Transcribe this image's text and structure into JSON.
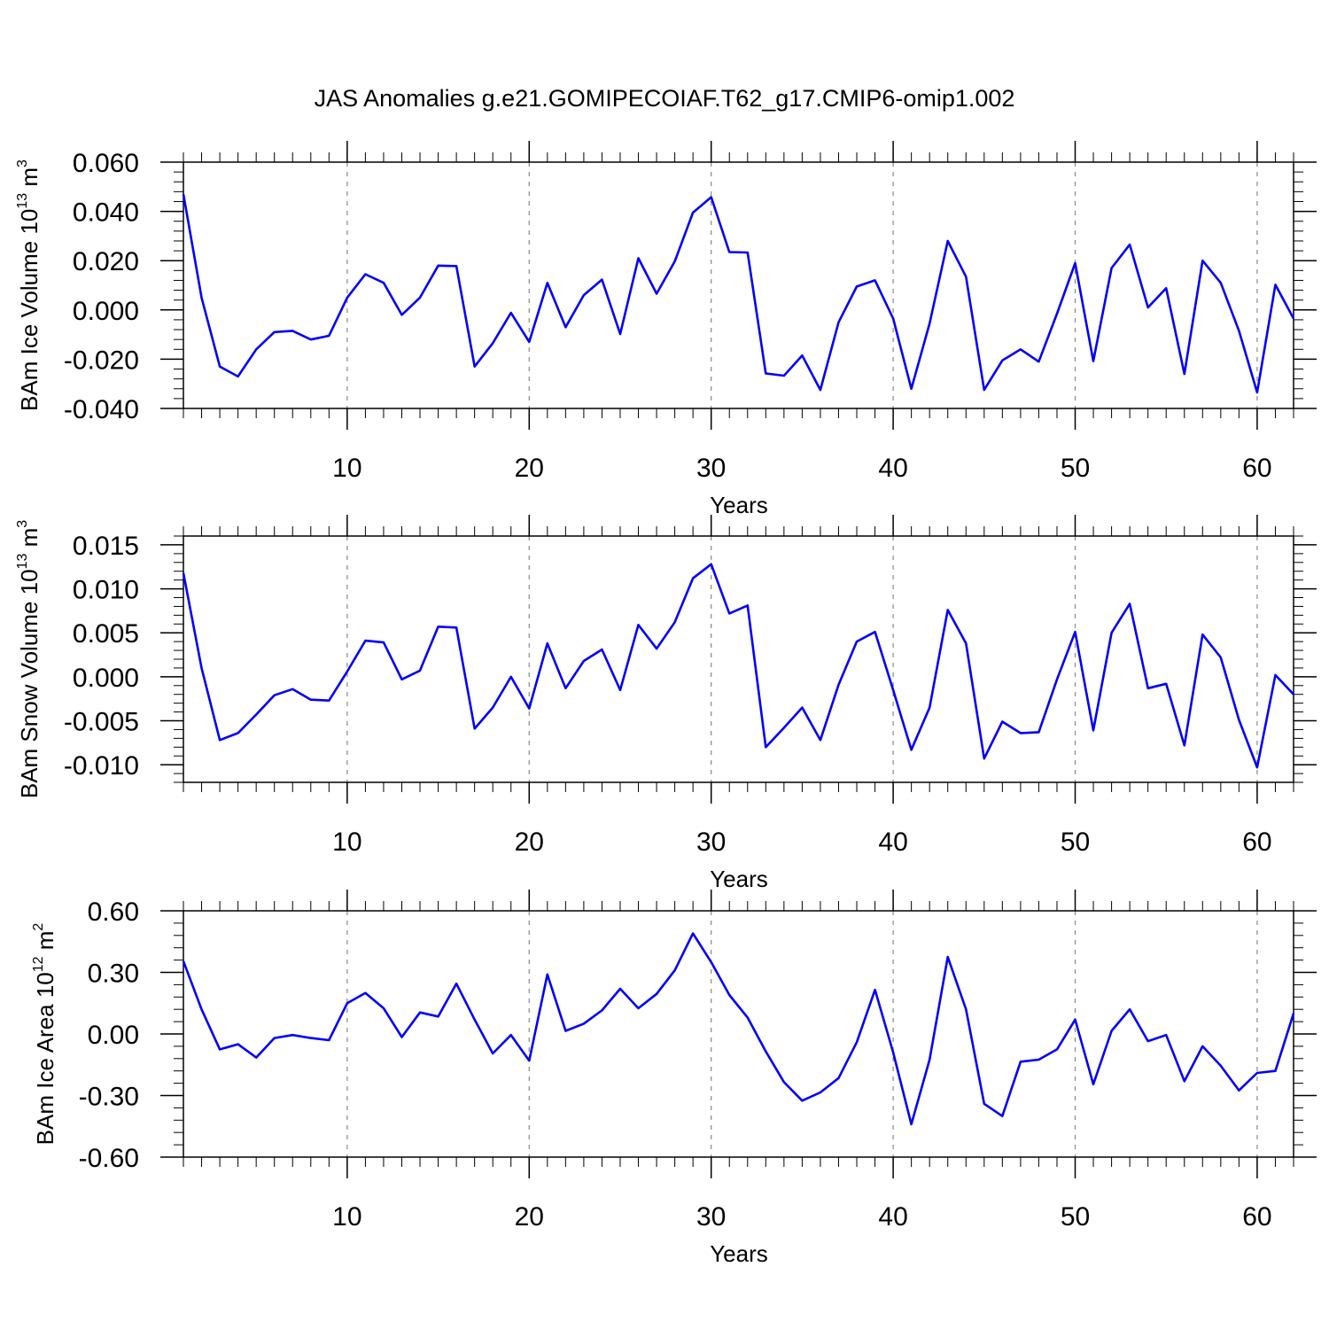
{
  "title": "JAS Anomalies g.e21.GOMIPECOIAF.T62_g17.CMIP6-omip1.002",
  "colors": {
    "series": "#0000ff",
    "axis": "#000000",
    "grid": "#888888"
  },
  "chart_data": [
    {
      "type": "line",
      "xlabel": "Years",
      "ylabel": {
        "prefix": "BAm Ice Volume 10",
        "exp": "13",
        "unit": " m",
        "unit_exp": "3"
      },
      "xlim": [
        1,
        62
      ],
      "ylim": [
        -0.04,
        0.06
      ],
      "xticks": [
        "10",
        "20",
        "30",
        "40",
        "50",
        "60"
      ],
      "yticks": [
        "0.060",
        "0.040",
        "0.020",
        "0.000",
        "-0.020",
        "-0.040"
      ],
      "x": [
        1,
        2,
        3,
        4,
        5,
        6,
        7,
        8,
        9,
        10,
        11,
        12,
        13,
        14,
        15,
        16,
        17,
        18,
        19,
        20,
        21,
        22,
        23,
        24,
        25,
        26,
        27,
        28,
        29,
        30,
        31,
        32,
        33,
        34,
        35,
        36,
        37,
        38,
        39,
        40,
        41,
        42,
        43,
        44,
        45,
        46,
        47,
        48,
        49,
        50,
        51,
        52,
        53,
        54,
        55,
        56,
        57,
        58,
        59,
        60,
        61,
        62
      ],
      "values": [
        0.047,
        0.005,
        -0.023,
        -0.027,
        -0.016,
        -0.009,
        -0.0085,
        -0.012,
        -0.0105,
        0.005,
        0.0145,
        0.011,
        -0.002,
        0.005,
        0.018,
        0.0178,
        -0.023,
        -0.0135,
        -0.0012,
        -0.013,
        0.011,
        -0.007,
        0.006,
        0.0123,
        -0.0098,
        0.021,
        0.0066,
        0.0197,
        0.0395,
        0.0458,
        0.0235,
        0.0233,
        -0.0258,
        -0.0267,
        -0.0185,
        -0.0325,
        -0.005,
        0.0095,
        0.012,
        -0.0035,
        -0.032,
        -0.0055,
        0.028,
        0.0135,
        -0.0325,
        -0.0205,
        -0.016,
        -0.021,
        -0.0015,
        0.019,
        -0.0208,
        0.017,
        0.0265,
        0.001,
        0.0088,
        -0.026,
        0.02,
        0.011,
        -0.0085,
        -0.0335,
        0.0102,
        -0.0035
      ]
    },
    {
      "type": "line",
      "xlabel": "Years",
      "ylabel": {
        "prefix": "BAm Snow Volume 10",
        "exp": "13",
        "unit": " m",
        "unit_exp": "3"
      },
      "xlim": [
        1,
        62
      ],
      "ylim": [
        -0.012,
        0.016
      ],
      "xticks": [
        "10",
        "20",
        "30",
        "40",
        "50",
        "60"
      ],
      "yticks": [
        "0.015",
        "0.010",
        "0.005",
        "0.000",
        "-0.005",
        "-0.010"
      ],
      "x": [
        1,
        2,
        3,
        4,
        5,
        6,
        7,
        8,
        9,
        10,
        11,
        12,
        13,
        14,
        15,
        16,
        17,
        18,
        19,
        20,
        21,
        22,
        23,
        24,
        25,
        26,
        27,
        28,
        29,
        30,
        31,
        32,
        33,
        34,
        35,
        36,
        37,
        38,
        39,
        40,
        41,
        42,
        43,
        44,
        45,
        46,
        47,
        48,
        49,
        50,
        51,
        52,
        53,
        54,
        55,
        56,
        57,
        58,
        59,
        60,
        61,
        62
      ],
      "values": [
        0.0118,
        0.001,
        -0.0072,
        -0.0064,
        -0.0043,
        -0.0021,
        -0.0014,
        -0.0026,
        -0.0027,
        0.0006,
        0.0041,
        0.0039,
        -0.0003,
        0.0007,
        0.0057,
        0.0056,
        -0.0059,
        -0.0035,
        0.0,
        -0.0036,
        0.0038,
        -0.0013,
        0.0018,
        0.0031,
        -0.0015,
        0.0059,
        0.0032,
        0.0062,
        0.0112,
        0.0128,
        0.0072,
        0.0081,
        -0.008,
        -0.0058,
        -0.0035,
        -0.0072,
        -0.0009,
        0.004,
        0.0051,
        -0.0015,
        -0.0083,
        -0.0035,
        0.0076,
        0.0038,
        -0.0093,
        -0.0051,
        -0.0064,
        -0.0063,
        -0.0003,
        0.0051,
        -0.0061,
        0.005,
        0.0083,
        -0.0013,
        -0.0008,
        -0.0078,
        0.0048,
        0.0022,
        -0.0049,
        -0.0103,
        0.0002,
        -0.002
      ]
    },
    {
      "type": "line",
      "xlabel": "Years",
      "ylabel": {
        "prefix": "BAm Ice Area 10",
        "exp": "12",
        "unit": " m",
        "unit_exp": "2"
      },
      "xlim": [
        1,
        62
      ],
      "ylim": [
        -0.6,
        0.6
      ],
      "xticks": [
        "10",
        "20",
        "30",
        "40",
        "50",
        "60"
      ],
      "yticks": [
        "0.60",
        "0.30",
        "0.00",
        "-0.30",
        "-0.60"
      ],
      "x": [
        1,
        2,
        3,
        4,
        5,
        6,
        7,
        8,
        9,
        10,
        11,
        12,
        13,
        14,
        15,
        16,
        17,
        18,
        19,
        20,
        21,
        22,
        23,
        24,
        25,
        26,
        27,
        28,
        29,
        30,
        31,
        32,
        33,
        34,
        35,
        36,
        37,
        38,
        39,
        40,
        41,
        42,
        43,
        44,
        45,
        46,
        47,
        48,
        49,
        50,
        51,
        52,
        53,
        54,
        55,
        56,
        57,
        58,
        59,
        60,
        61,
        62
      ],
      "values": [
        0.355,
        0.12,
        -0.075,
        -0.05,
        -0.115,
        -0.02,
        -0.005,
        -0.02,
        -0.03,
        0.15,
        0.2,
        0.125,
        -0.015,
        0.105,
        0.085,
        0.245,
        0.07,
        -0.095,
        -0.005,
        -0.13,
        0.29,
        0.015,
        0.05,
        0.115,
        0.22,
        0.125,
        0.195,
        0.31,
        0.49,
        0.35,
        0.19,
        0.08,
        -0.085,
        -0.235,
        -0.325,
        -0.285,
        -0.215,
        -0.04,
        0.215,
        -0.09,
        -0.44,
        -0.125,
        0.375,
        0.12,
        -0.34,
        -0.4,
        -0.135,
        -0.125,
        -0.075,
        0.07,
        -0.245,
        0.015,
        0.12,
        -0.035,
        -0.005,
        -0.23,
        -0.06,
        -0.155,
        -0.275,
        -0.19,
        -0.18,
        0.1
      ]
    }
  ]
}
